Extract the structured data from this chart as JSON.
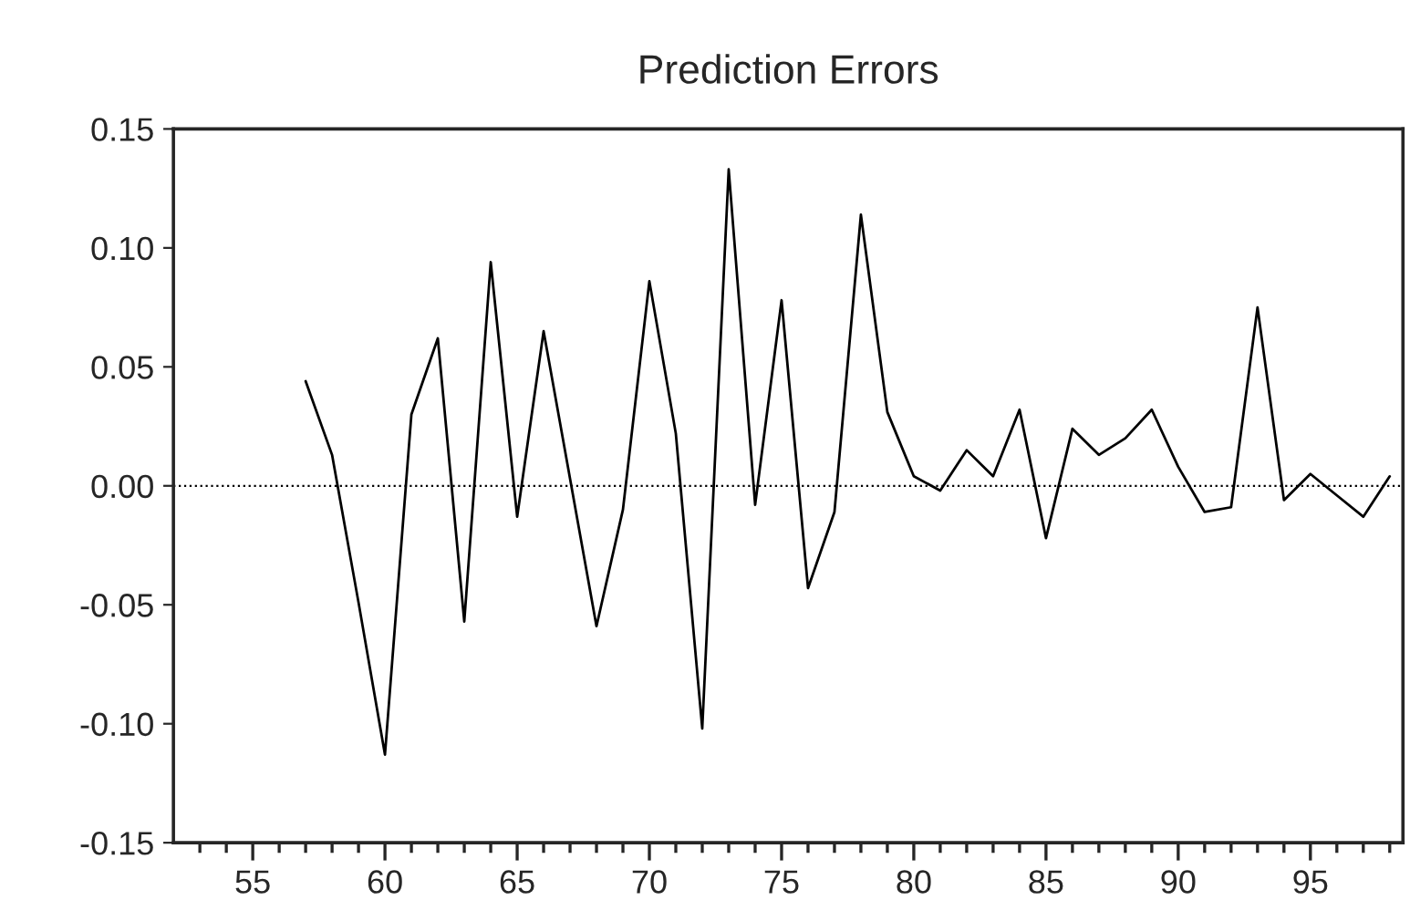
{
  "chart_data": {
    "type": "line",
    "title": "Prediction Errors",
    "x": [
      57,
      58,
      59,
      60,
      61,
      62,
      63,
      64,
      65,
      66,
      67,
      68,
      69,
      70,
      71,
      72,
      73,
      74,
      75,
      76,
      77,
      78,
      79,
      80,
      81,
      82,
      83,
      84,
      85,
      86,
      87,
      88,
      89,
      90,
      91,
      92,
      93,
      94,
      95,
      96,
      97,
      98
    ],
    "series": [
      {
        "color": "#000000",
        "values": [
          0.044,
          0.013,
          -0.049,
          -0.113,
          0.03,
          0.062,
          -0.057,
          0.094,
          -0.013,
          0.065,
          0.003,
          -0.059,
          -0.01,
          0.086,
          0.022,
          -0.102,
          0.133,
          -0.008,
          0.078,
          -0.043,
          -0.011,
          0.114,
          0.031,
          0.004,
          -0.002,
          0.015,
          0.004,
          0.032,
          -0.022,
          0.024,
          0.013,
          0.02,
          0.032,
          0.008,
          -0.011,
          -0.009,
          0.075,
          -0.006,
          0.005,
          -0.004,
          -0.013,
          0.004
        ]
      }
    ],
    "xlim": [
      52,
      98.5
    ],
    "xticks": [
      {
        "value": 53,
        "label": null
      },
      {
        "value": 54,
        "label": null
      },
      55,
      {
        "value": 56,
        "label": null
      },
      {
        "value": 57,
        "label": null
      },
      {
        "value": 58,
        "label": null
      },
      {
        "value": 59,
        "label": null
      },
      60,
      {
        "value": 61,
        "label": null
      },
      {
        "value": 62,
        "label": null
      },
      {
        "value": 63,
        "label": null
      },
      {
        "value": 64,
        "label": null
      },
      65,
      {
        "value": 66,
        "label": null
      },
      {
        "value": 67,
        "label": null
      },
      {
        "value": 68,
        "label": null
      },
      {
        "value": 69,
        "label": null
      },
      70,
      {
        "value": 71,
        "label": null
      },
      {
        "value": 72,
        "label": null
      },
      {
        "value": 73,
        "label": null
      },
      {
        "value": 74,
        "label": null
      },
      75,
      {
        "value": 76,
        "label": null
      },
      {
        "value": 77,
        "label": null
      },
      {
        "value": 78,
        "label": null
      },
      {
        "value": 79,
        "label": null
      },
      80,
      {
        "value": 81,
        "label": null
      },
      {
        "value": 82,
        "label": null
      },
      {
        "value": 83,
        "label": null
      },
      {
        "value": 84,
        "label": null
      },
      85,
      {
        "value": 86,
        "label": null
      },
      {
        "value": 87,
        "label": null
      },
      {
        "value": 88,
        "label": null
      },
      {
        "value": 89,
        "label": null
      },
      90,
      {
        "value": 91,
        "label": null
      },
      {
        "value": 92,
        "label": null
      },
      {
        "value": 93,
        "label": null
      },
      {
        "value": 94,
        "label": null
      },
      95,
      {
        "value": 96,
        "label": null
      },
      {
        "value": 97,
        "label": null
      },
      {
        "value": 98,
        "label": null
      }
    ],
    "ylim": [
      -0.15,
      0.15
    ],
    "yticks": [
      {
        "value": -0.15,
        "label": "-0.15"
      },
      {
        "value": -0.1,
        "label": "-0.10"
      },
      {
        "value": -0.05,
        "label": "-0.05"
      },
      {
        "value": 0,
        "label": "0.00"
      },
      {
        "value": 0.05,
        "label": "0.05"
      },
      {
        "value": 0.1,
        "label": "0.10"
      },
      {
        "value": 0.15,
        "label": "0.15"
      }
    ],
    "ref_lines": [
      {
        "axis": "y",
        "value": 0,
        "color": "#000000",
        "line_style": "dotted"
      }
    ],
    "grid": false,
    "legend": false,
    "marker": "none",
    "line_style": "solid"
  }
}
